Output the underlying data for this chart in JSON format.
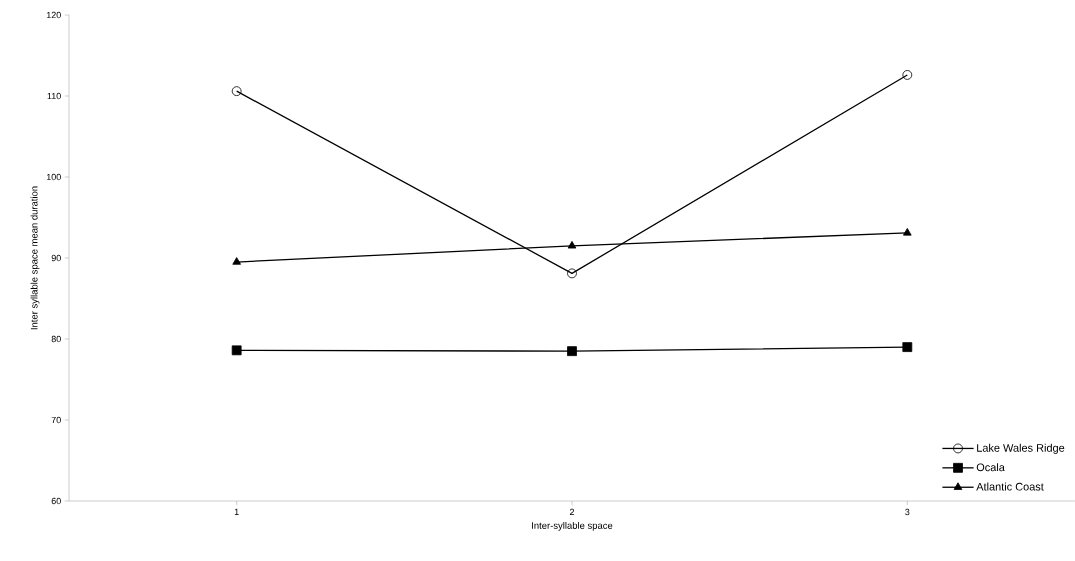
{
  "chart_data": {
    "type": "line",
    "xlabel": "Inter-syllable space",
    "ylabel": "Inter syllable space mean duration",
    "categories": [
      "1",
      "2",
      "3"
    ],
    "series": [
      {
        "name": "Lake Wales Ridge",
        "color": "#000000",
        "marker": "circle",
        "values": [
          110.6,
          88.1,
          112.6
        ]
      },
      {
        "name": "Ocala",
        "color": "#000000",
        "marker": "square",
        "values": [
          78.6,
          78.5,
          79.0
        ]
      },
      {
        "name": "Atlantic Coast",
        "color": "#000000",
        "marker": "triangle",
        "values": [
          89.5,
          91.5,
          93.1
        ]
      }
    ],
    "ylim": [
      60,
      120
    ],
    "yticks": [
      60,
      70,
      80,
      90,
      100,
      110,
      120
    ],
    "grid": false,
    "legend": "bottom right",
    "line_style": "solid"
  }
}
